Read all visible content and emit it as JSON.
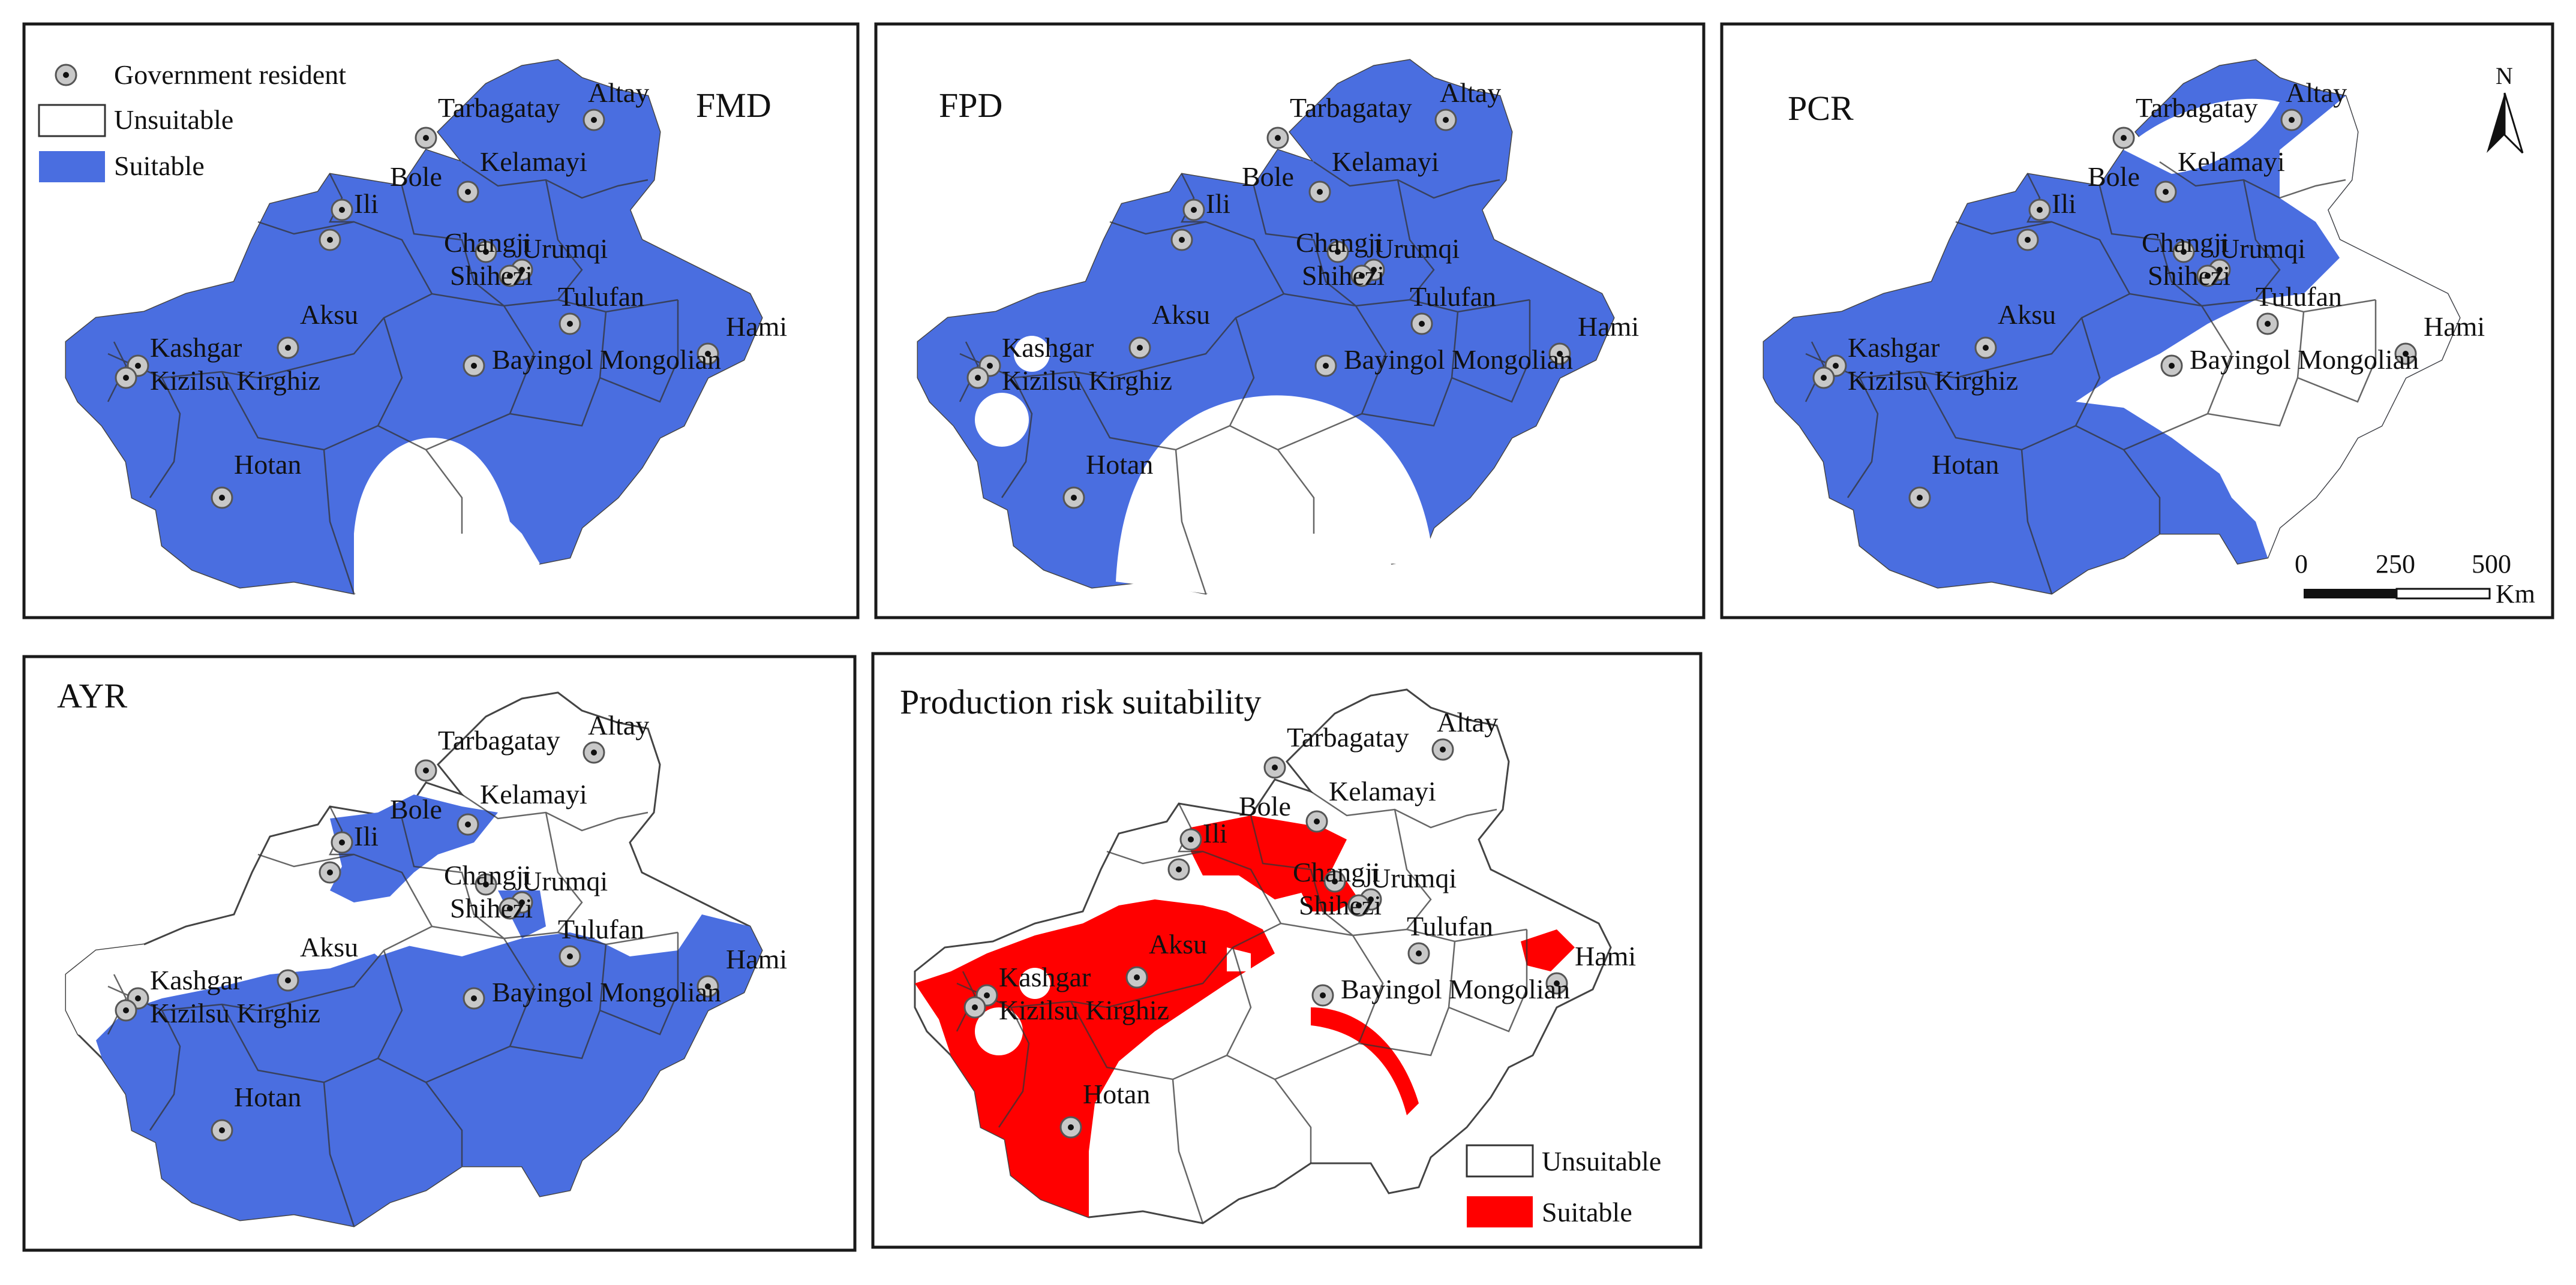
{
  "legend_top": {
    "resident": "Government resident",
    "unsuitable": "Unsuitable",
    "suitable": "Suitable",
    "unsuitable_color": "#ffffff",
    "suitable_color": "#4a6ee0"
  },
  "legend_bottom": {
    "unsuitable": "Unsuitable",
    "suitable": "Suitable",
    "unsuitable_color": "#ffffff",
    "suitable_color": "#ff0000"
  },
  "panels": [
    {
      "id": "fmd",
      "title": "FMD",
      "fill_color": "#4a6ee0"
    },
    {
      "id": "fpd",
      "title": "FPD",
      "fill_color": "#4a6ee0"
    },
    {
      "id": "pcr",
      "title": "PCR",
      "fill_color": "#4a6ee0"
    },
    {
      "id": "ayr",
      "title": "AYR",
      "fill_color": "#4a6ee0"
    },
    {
      "id": "prs",
      "title": "Production risk suitability",
      "fill_color": "#ff0000"
    }
  ],
  "cities": [
    "Altay",
    "Tarbagatay",
    "Kelamayi",
    "Bole",
    "Ili",
    "Changji",
    "Urumqi",
    "Shihezi",
    "Tulufan",
    "Hami",
    "Aksu",
    "Kashgar",
    "Kizilsu Kirghiz",
    "Bayingol Mongolian",
    "Hotan"
  ],
  "north_arrow": "N",
  "scale_bar": {
    "ticks": [
      "0",
      "250",
      "500"
    ],
    "unit": "Km"
  }
}
